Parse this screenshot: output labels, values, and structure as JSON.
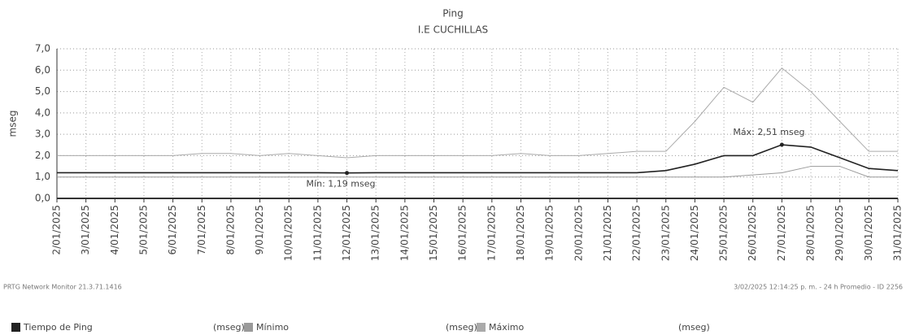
{
  "chart_data": {
    "type": "line",
    "title": "Ping",
    "subtitle": "I.E CUCHILLAS",
    "y_label": "mseg",
    "categories": [
      "2/01/2025",
      "3/01/2025",
      "4/01/2025",
      "5/01/2025",
      "6/01/2025",
      "7/01/2025",
      "8/01/2025",
      "9/01/2025",
      "10/01/2025",
      "11/01/2025",
      "12/01/2025",
      "13/01/2025",
      "14/01/2025",
      "15/01/2025",
      "16/01/2025",
      "17/01/2025",
      "18/01/2025",
      "19/01/2025",
      "20/01/2025",
      "21/01/2025",
      "22/01/2025",
      "23/01/2025",
      "24/01/2025",
      "25/01/2025",
      "26/01/2025",
      "27/01/2025",
      "28/01/2025",
      "29/01/2025",
      "30/01/2025",
      "31/01/2025"
    ],
    "series": [
      {
        "name": "Tiempo de Ping",
        "color": "#222222",
        "values": [
          1.2,
          1.2,
          1.2,
          1.2,
          1.2,
          1.2,
          1.2,
          1.2,
          1.2,
          1.2,
          1.19,
          1.2,
          1.2,
          1.2,
          1.2,
          1.2,
          1.2,
          1.2,
          1.2,
          1.2,
          1.2,
          1.3,
          1.6,
          2.0,
          2.0,
          2.51,
          2.4,
          1.9,
          1.4,
          1.3
        ]
      },
      {
        "name": "Mínimo",
        "color": "#9a9a9a",
        "values": [
          1.0,
          1.0,
          1.0,
          1.0,
          1.0,
          1.0,
          1.0,
          1.0,
          1.0,
          1.0,
          1.0,
          1.0,
          1.0,
          1.0,
          1.0,
          1.0,
          1.0,
          1.0,
          1.0,
          1.0,
          1.0,
          1.0,
          1.0,
          1.0,
          1.1,
          1.2,
          1.5,
          1.5,
          1.0,
          1.0
        ]
      },
      {
        "name": "Máximo",
        "color": "#aaaaaa",
        "values": [
          2.0,
          2.0,
          2.0,
          2.0,
          2.0,
          2.1,
          2.1,
          2.0,
          2.1,
          2.0,
          1.9,
          2.0,
          2.0,
          2.0,
          2.0,
          2.0,
          2.1,
          2.0,
          2.0,
          2.1,
          2.2,
          2.2,
          3.6,
          5.2,
          4.5,
          6.1,
          5.0,
          3.6,
          2.2,
          2.2
        ]
      }
    ],
    "legend_unit": "(mseg)",
    "annotations": [
      {
        "text": "Máx: 2,51 mseg",
        "category": "27/01/2025",
        "value": 2.51
      },
      {
        "text": "Mín: 1,19 mseg",
        "category": "12/01/2025",
        "value": 1.19
      }
    ],
    "ylim": [
      0,
      7
    ],
    "yticks": [
      {
        "value": 0,
        "label": "0,0"
      },
      {
        "value": 1,
        "label": "1,0"
      },
      {
        "value": 2,
        "label": "2,0"
      },
      {
        "value": 3,
        "label": "3,0"
      },
      {
        "value": 4,
        "label": "4,0"
      },
      {
        "value": 5,
        "label": "5,0"
      },
      {
        "value": 6,
        "label": "6,0"
      },
      {
        "value": 7,
        "label": "7,0"
      }
    ],
    "grid": true,
    "footer_left": "PRTG Network Monitor 21.3.71.1416",
    "footer_right": "3/02/2025 12:14:25 p. m. - 24 h Promedio - ID 2256"
  }
}
